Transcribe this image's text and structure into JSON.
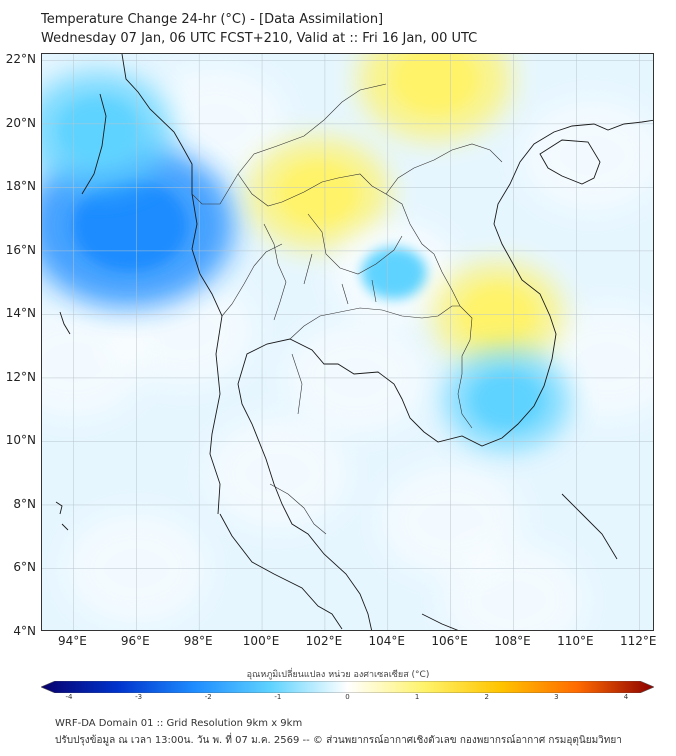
{
  "header": {
    "title_line1": "Temperature Change 24-hr (°C) - [Data Assimilation]",
    "title_line2": "Wednesday 07 Jan, 06 UTC FCST+210, Valid at :: Fri 16 Jan, 00 UTC"
  },
  "map": {
    "lat_labels": [
      "22°N",
      "20°N",
      "18°N",
      "16°N",
      "14°N",
      "12°N",
      "10°N",
      "8°N",
      "6°N",
      "4°N"
    ],
    "lon_labels": [
      "94°E",
      "96°E",
      "98°E",
      "100°E",
      "102°E",
      "104°E",
      "106°E",
      "108°E",
      "110°E",
      "112°E"
    ],
    "lat_values": [
      22,
      20,
      18,
      16,
      14,
      12,
      10,
      8,
      6,
      4
    ],
    "lon_values": [
      94,
      96,
      98,
      100,
      102,
      104,
      106,
      108,
      110,
      112
    ],
    "extent": {
      "lon_min": 93.0,
      "lon_max": 112.5,
      "lat_min": 4.0,
      "lat_max": 22.2
    },
    "features": [
      {
        "lon": 95.8,
        "lat": 16.8,
        "change": -2.3,
        "label": "strong cooling"
      },
      {
        "lon": 94.8,
        "lat": 19.8,
        "change": -1.2,
        "label": "cooling"
      },
      {
        "lon": 101.8,
        "lat": 17.8,
        "change": 1.1,
        "label": "warming"
      },
      {
        "lon": 105.5,
        "lat": 21.4,
        "change": 1.3,
        "label": "warming"
      },
      {
        "lon": 104.2,
        "lat": 15.3,
        "change": -0.7,
        "label": "cooling"
      },
      {
        "lon": 107.5,
        "lat": 14.0,
        "change": 0.9,
        "label": "warming"
      },
      {
        "lon": 107.8,
        "lat": 11.3,
        "change": -0.8,
        "label": "cooling"
      }
    ]
  },
  "colorbar": {
    "title": "อุณหภูมิเปลี่ยนแปลง หน่วย องศาเซลเซียส (°C)",
    "ticks": [
      "-4",
      "-3",
      "-2",
      "-1",
      "0",
      "1",
      "2",
      "3",
      "4"
    ],
    "range": [
      -4,
      4
    ],
    "colors": [
      "#08006b",
      "#0033cc",
      "#1e8cff",
      "#5fd3ff",
      "#ffffff",
      "#fff36b",
      "#ffc400",
      "#ff6a00",
      "#8b0000"
    ]
  },
  "footer": {
    "line1": "WRF-DA Domain 01 :: Grid Resolution 9km x 9km",
    "line2": "ปรับปรุงข้อมูล ณ เวลา 13:00น. วัน พ. ที่ 07 ม.ค. 2569 -- © ส่วนพยากรณ์อากาศเชิงตัวเลข กองพยากรณ์อากาศ กรมอุตุนิยมวิทยา"
  }
}
